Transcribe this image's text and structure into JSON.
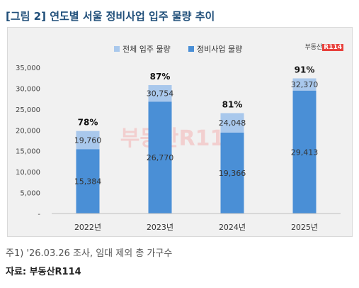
{
  "title": "[그림 2] 연도별 서울 정비사업 입주 물량 추이",
  "brand_mark": {
    "text": "부동산",
    "badge": "R114"
  },
  "watermark": "부동산R114",
  "note": "주1) '26.03.26 조사, 임대 제외 총 가구수",
  "source": "자료: 부동산R114",
  "colors": {
    "total": "#a9c8ec",
    "redevelopment": "#4a8fd6",
    "background": "#f1f1f1",
    "watermark": "#f3b3b3"
  },
  "chart_data": {
    "type": "bar",
    "stacked": "overlay",
    "categories": [
      "2022년",
      "2023년",
      "2024년",
      "2025년"
    ],
    "series": [
      {
        "name": "전체 입주 물량",
        "values": [
          19760,
          30754,
          24048,
          32370
        ]
      },
      {
        "name": "정비사업 물량",
        "values": [
          15384,
          26770,
          19366,
          29413
        ]
      }
    ],
    "ratio_labels": [
      "78%",
      "87%",
      "81%",
      "91%"
    ],
    "y_ticks": [
      "-",
      "5,000",
      "10,000",
      "15,000",
      "20,000",
      "25,000",
      "30,000",
      "35,000"
    ],
    "value_labels_total": [
      "19,760",
      "30,754",
      "24,048",
      "32,370"
    ],
    "value_labels_redevelopment": [
      "15,384",
      "26,770",
      "19,366",
      "29,413"
    ],
    "ylim": [
      0,
      35000
    ],
    "legend_position": "top-center",
    "grid": false
  }
}
